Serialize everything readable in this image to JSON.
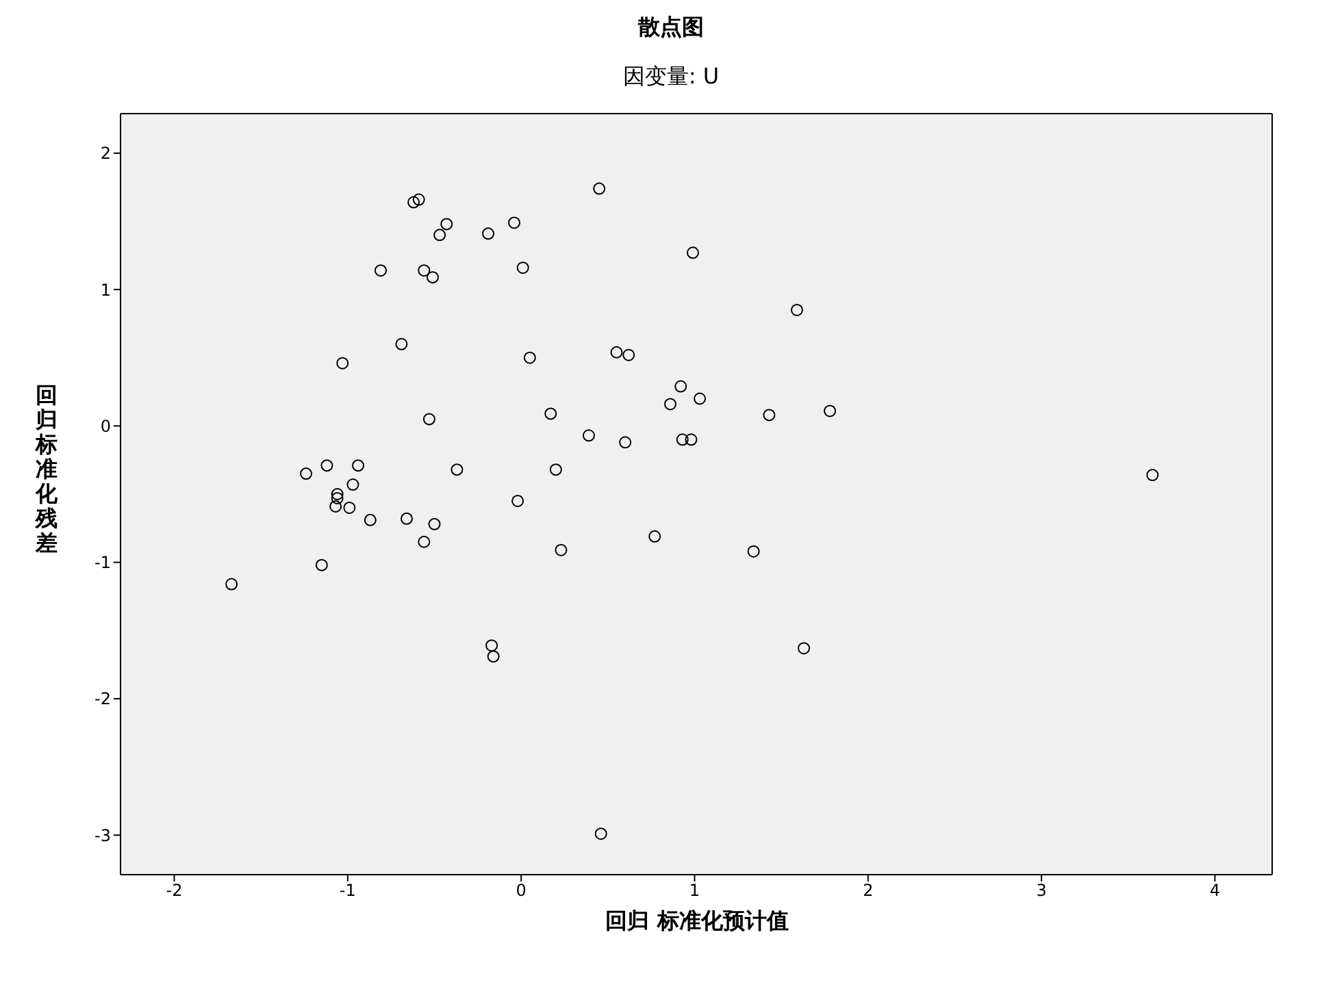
{
  "chart_data": {
    "type": "scatter",
    "title": "散点图",
    "subtitle": "因变量: U",
    "xlabel": "回归 标准化预计值",
    "ylabel": "回归标准化残差",
    "x": [
      -1.67,
      -1.24,
      -1.15,
      -1.12,
      -1.06,
      -1.06,
      -1.07,
      -1.03,
      -0.99,
      -0.97,
      -0.94,
      -0.87,
      -0.81,
      -0.69,
      -0.66,
      -0.62,
      -0.59,
      -0.56,
      -0.56,
      -0.53,
      -0.51,
      -0.5,
      -0.47,
      -0.43,
      -0.37,
      -0.19,
      -0.17,
      -0.16,
      -0.04,
      -0.02,
      0.01,
      0.05,
      0.17,
      0.2,
      0.23,
      0.39,
      0.45,
      0.46,
      0.55,
      0.6,
      0.62,
      0.77,
      0.86,
      0.92,
      0.93,
      0.98,
      0.99,
      1.03,
      1.34,
      1.43,
      1.59,
      1.63,
      1.78,
      3.64
    ],
    "values": [
      -1.16,
      -0.35,
      -1.02,
      -0.29,
      -0.5,
      -0.53,
      -0.59,
      0.46,
      -0.6,
      -0.43,
      -0.29,
      -0.69,
      1.14,
      0.6,
      -0.68,
      1.64,
      1.66,
      1.14,
      -0.85,
      0.05,
      1.09,
      -0.72,
      1.4,
      1.48,
      -0.32,
      1.41,
      -1.61,
      -1.69,
      1.49,
      -0.55,
      1.16,
      0.5,
      0.09,
      -0.32,
      -0.91,
      -0.07,
      1.74,
      -2.99,
      0.54,
      -0.12,
      0.52,
      -0.81,
      0.16,
      0.29,
      -0.1,
      -0.1,
      1.27,
      0.2,
      -0.92,
      0.08,
      0.85,
      -1.63,
      0.11,
      -0.36
    ],
    "color": "#000000",
    "marker": "circle",
    "xlim": [
      -2.31,
      4.33
    ],
    "xticks": [
      -2,
      -1,
      0,
      1,
      2,
      3,
      4
    ],
    "ylim": [
      -3.29,
      2.29
    ],
    "yticks": [
      -3,
      -2,
      -1,
      0,
      1,
      2
    ]
  }
}
